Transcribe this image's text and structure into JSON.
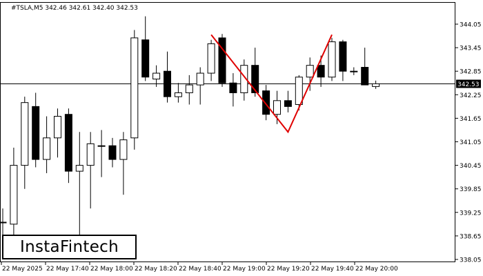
{
  "header": {
    "symbol_line": "#TSLA,M5  342.46 342.61 342.40 342.53"
  },
  "logo": {
    "text": "InstaFintech"
  },
  "price_label": "342.53",
  "colors": {
    "bull": "#ffffff",
    "bear": "#000000",
    "pattern": "#e00000",
    "grid": "#000000"
  },
  "chart_data": {
    "type": "candlestick",
    "title": "#TSLA,M5",
    "y_ticks": [
      "344.05",
      "343.45",
      "342.85",
      "342.25",
      "341.65",
      "341.05",
      "340.45",
      "339.85",
      "339.25",
      "338.65",
      "338.05"
    ],
    "ylim": [
      338.05,
      344.55
    ],
    "x_ticks": [
      "22 May 2025",
      "22 May 17:40",
      "22 May 18:00",
      "22 May 18:20",
      "22 May 18:40",
      "22 May 19:00",
      "22 May 19:20",
      "22 May 19:40",
      "22 May 20:00"
    ],
    "current_price": 342.53,
    "candles": [
      {
        "o": 339.0,
        "h": 339.35,
        "l": 338.4,
        "c": 339.0
      },
      {
        "o": 338.95,
        "h": 340.9,
        "l": 338.4,
        "c": 340.45
      },
      {
        "o": 340.45,
        "h": 342.2,
        "l": 339.85,
        "c": 342.05
      },
      {
        "o": 341.95,
        "h": 342.3,
        "l": 340.4,
        "c": 340.6
      },
      {
        "o": 340.6,
        "h": 341.7,
        "l": 340.25,
        "c": 341.15
      },
      {
        "o": 341.15,
        "h": 341.9,
        "l": 340.65,
        "c": 341.7
      },
      {
        "o": 341.75,
        "h": 341.9,
        "l": 340.0,
        "c": 340.3
      },
      {
        "o": 340.3,
        "h": 341.3,
        "l": 338.6,
        "c": 340.45
      },
      {
        "o": 340.45,
        "h": 341.3,
        "l": 339.35,
        "c": 341.0
      },
      {
        "o": 340.95,
        "h": 341.35,
        "l": 340.15,
        "c": 340.95
      },
      {
        "o": 340.95,
        "h": 341.15,
        "l": 340.4,
        "c": 340.6
      },
      {
        "o": 340.6,
        "h": 341.3,
        "l": 339.7,
        "c": 341.1
      },
      {
        "o": 341.15,
        "h": 343.9,
        "l": 340.85,
        "c": 343.7
      },
      {
        "o": 343.65,
        "h": 344.25,
        "l": 342.6,
        "c": 342.7
      },
      {
        "o": 342.65,
        "h": 343.0,
        "l": 342.45,
        "c": 342.8
      },
      {
        "o": 342.85,
        "h": 343.35,
        "l": 342.05,
        "c": 342.2
      },
      {
        "o": 342.2,
        "h": 342.55,
        "l": 342.05,
        "c": 342.3
      },
      {
        "o": 342.3,
        "h": 342.75,
        "l": 342.0,
        "c": 342.5
      },
      {
        "o": 342.5,
        "h": 342.95,
        "l": 342.0,
        "c": 342.8
      },
      {
        "o": 342.8,
        "h": 343.65,
        "l": 342.6,
        "c": 343.55
      },
      {
        "o": 343.7,
        "h": 343.8,
        "l": 342.45,
        "c": 342.55
      },
      {
        "o": 342.55,
        "h": 342.8,
        "l": 341.95,
        "c": 342.3
      },
      {
        "o": 342.3,
        "h": 343.15,
        "l": 342.1,
        "c": 343.0
      },
      {
        "o": 343.0,
        "h": 343.45,
        "l": 342.2,
        "c": 342.3
      },
      {
        "o": 342.35,
        "h": 342.5,
        "l": 341.6,
        "c": 341.75
      },
      {
        "o": 341.75,
        "h": 342.35,
        "l": 341.5,
        "c": 342.1
      },
      {
        "o": 342.1,
        "h": 342.35,
        "l": 341.8,
        "c": 341.95
      },
      {
        "o": 342.0,
        "h": 342.75,
        "l": 341.85,
        "c": 342.7
      },
      {
        "o": 342.7,
        "h": 343.2,
        "l": 342.35,
        "c": 343.0
      },
      {
        "o": 343.0,
        "h": 343.25,
        "l": 342.45,
        "c": 342.7
      },
      {
        "o": 342.7,
        "h": 343.7,
        "l": 342.6,
        "c": 343.6
      },
      {
        "o": 343.6,
        "h": 343.65,
        "l": 342.6,
        "c": 342.85
      },
      {
        "o": 342.85,
        "h": 342.95,
        "l": 342.75,
        "c": 342.85
      },
      {
        "o": 342.95,
        "h": 343.45,
        "l": 342.5,
        "c": 342.5
      },
      {
        "o": 342.46,
        "h": 342.61,
        "l": 342.4,
        "c": 342.53
      }
    ],
    "pattern_line": [
      {
        "candle": 19,
        "price": 343.78
      },
      {
        "candle": 26,
        "price": 341.3
      },
      {
        "candle": 30,
        "price": 343.78
      }
    ]
  }
}
